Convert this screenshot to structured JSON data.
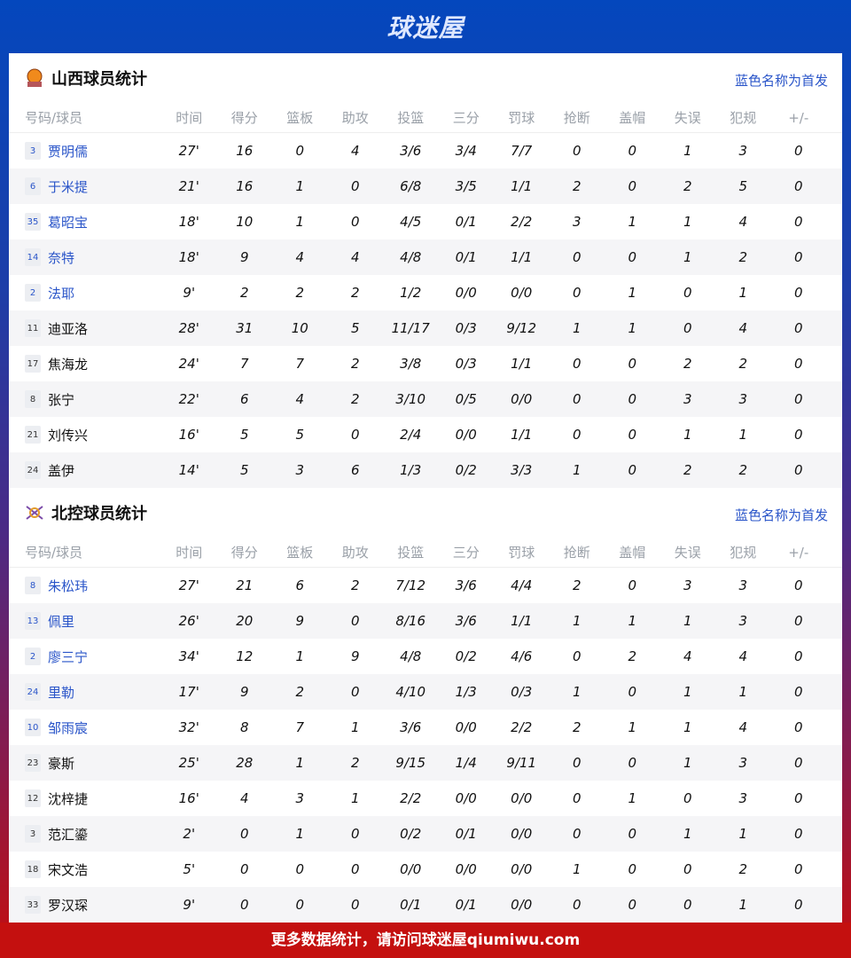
{
  "brand": "球迷屋",
  "footer": "更多数据统计，请访问球迷屋qiumiwu.com",
  "colors": {
    "accent": "#2a55c9",
    "footer": "#c4100f",
    "top": "#0447bd"
  },
  "headers": [
    "号码/球员",
    "时间",
    "得分",
    "篮板",
    "助攻",
    "投篮",
    "三分",
    "罚球",
    "抢断",
    "盖帽",
    "失误",
    "犯规",
    "+/-"
  ],
  "teams": [
    {
      "title": "山西球员统计",
      "note": "蓝色名称为首发",
      "icon": "basketball-team-logo",
      "players": [
        {
          "num": "3",
          "name": "贾明儒",
          "starter": true,
          "stats": [
            "27'",
            "16",
            "0",
            "4",
            "3/6",
            "3/4",
            "7/7",
            "0",
            "0",
            "1",
            "3",
            "0"
          ]
        },
        {
          "num": "6",
          "name": "于米提",
          "starter": true,
          "stats": [
            "21'",
            "16",
            "1",
            "0",
            "6/8",
            "3/5",
            "1/1",
            "2",
            "0",
            "2",
            "5",
            "0"
          ]
        },
        {
          "num": "35",
          "name": "葛昭宝",
          "starter": true,
          "stats": [
            "18'",
            "10",
            "1",
            "0",
            "4/5",
            "0/1",
            "2/2",
            "3",
            "1",
            "1",
            "4",
            "0"
          ]
        },
        {
          "num": "14",
          "name": "奈特",
          "starter": true,
          "stats": [
            "18'",
            "9",
            "4",
            "4",
            "4/8",
            "0/1",
            "1/1",
            "0",
            "0",
            "1",
            "2",
            "0"
          ]
        },
        {
          "num": "2",
          "name": "法耶",
          "starter": true,
          "stats": [
            "9'",
            "2",
            "2",
            "2",
            "1/2",
            "0/0",
            "0/0",
            "0",
            "1",
            "0",
            "1",
            "0"
          ]
        },
        {
          "num": "11",
          "name": "迪亚洛",
          "starter": false,
          "stats": [
            "28'",
            "31",
            "10",
            "5",
            "11/17",
            "0/3",
            "9/12",
            "1",
            "1",
            "0",
            "4",
            "0"
          ]
        },
        {
          "num": "17",
          "name": "焦海龙",
          "starter": false,
          "stats": [
            "24'",
            "7",
            "7",
            "2",
            "3/8",
            "0/3",
            "1/1",
            "0",
            "0",
            "2",
            "2",
            "0"
          ]
        },
        {
          "num": "8",
          "name": "张宁",
          "starter": false,
          "stats": [
            "22'",
            "6",
            "4",
            "2",
            "3/10",
            "0/5",
            "0/0",
            "0",
            "0",
            "3",
            "3",
            "0"
          ]
        },
        {
          "num": "21",
          "name": "刘传兴",
          "starter": false,
          "stats": [
            "16'",
            "5",
            "5",
            "0",
            "2/4",
            "0/0",
            "1/1",
            "0",
            "0",
            "1",
            "1",
            "0"
          ]
        },
        {
          "num": "24",
          "name": "盖伊",
          "starter": false,
          "stats": [
            "14'",
            "5",
            "3",
            "6",
            "1/3",
            "0/2",
            "3/3",
            "1",
            "0",
            "2",
            "2",
            "0"
          ]
        }
      ]
    },
    {
      "title": "北控球员统计",
      "note": "蓝色名称为首发",
      "icon": "fly-dragon-team-logo",
      "players": [
        {
          "num": "8",
          "name": "朱松玮",
          "starter": true,
          "stats": [
            "27'",
            "21",
            "6",
            "2",
            "7/12",
            "3/6",
            "4/4",
            "2",
            "0",
            "3",
            "3",
            "0"
          ]
        },
        {
          "num": "13",
          "name": "佩里",
          "starter": true,
          "stats": [
            "26'",
            "20",
            "9",
            "0",
            "8/16",
            "3/6",
            "1/1",
            "1",
            "1",
            "1",
            "3",
            "0"
          ]
        },
        {
          "num": "2",
          "name": "廖三宁",
          "starter": true,
          "stats": [
            "34'",
            "12",
            "1",
            "9",
            "4/8",
            "0/2",
            "4/6",
            "0",
            "2",
            "4",
            "4",
            "0"
          ]
        },
        {
          "num": "24",
          "name": "里勒",
          "starter": true,
          "stats": [
            "17'",
            "9",
            "2",
            "0",
            "4/10",
            "1/3",
            "0/3",
            "1",
            "0",
            "1",
            "1",
            "0"
          ]
        },
        {
          "num": "10",
          "name": "邹雨宸",
          "starter": true,
          "stats": [
            "32'",
            "8",
            "7",
            "1",
            "3/6",
            "0/0",
            "2/2",
            "2",
            "1",
            "1",
            "4",
            "0"
          ]
        },
        {
          "num": "23",
          "name": "豪斯",
          "starter": false,
          "stats": [
            "25'",
            "28",
            "1",
            "2",
            "9/15",
            "1/4",
            "9/11",
            "0",
            "0",
            "1",
            "3",
            "0"
          ]
        },
        {
          "num": "12",
          "name": "沈梓捷",
          "starter": false,
          "stats": [
            "16'",
            "4",
            "3",
            "1",
            "2/2",
            "0/0",
            "0/0",
            "0",
            "1",
            "0",
            "3",
            "0"
          ]
        },
        {
          "num": "3",
          "name": "范汇鎏",
          "starter": false,
          "stats": [
            "2'",
            "0",
            "1",
            "0",
            "0/2",
            "0/1",
            "0/0",
            "0",
            "0",
            "1",
            "1",
            "0"
          ]
        },
        {
          "num": "18",
          "name": "宋文浩",
          "starter": false,
          "stats": [
            "5'",
            "0",
            "0",
            "0",
            "0/0",
            "0/0",
            "0/0",
            "1",
            "0",
            "0",
            "2",
            "0"
          ]
        },
        {
          "num": "33",
          "name": "罗汉琛",
          "starter": false,
          "stats": [
            "9'",
            "0",
            "0",
            "0",
            "0/1",
            "0/1",
            "0/0",
            "0",
            "0",
            "0",
            "1",
            "0"
          ]
        }
      ]
    }
  ]
}
